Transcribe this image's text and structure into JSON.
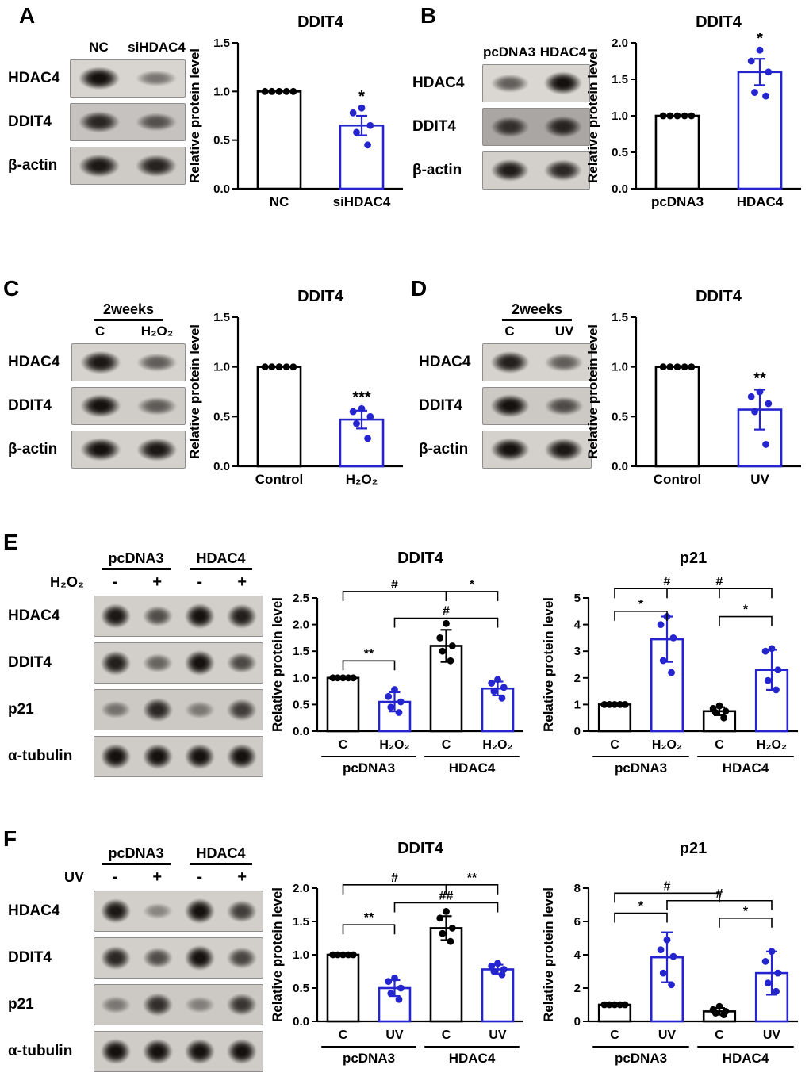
{
  "figure": {
    "colors": {
      "treatment_blue": "#2525d0",
      "control_black": "#000000"
    },
    "panels": [
      {
        "id": "A",
        "label": "A",
        "blot": {
          "lane_labels": [
            "NC",
            "siHDAC4"
          ],
          "rows": [
            {
              "label": "HDAC4",
              "bg": "#d8d4d0",
              "bands": [
                1.0,
                0.35
              ]
            },
            {
              "label": "DDIT4",
              "bg": "#c6c2bf",
              "bands": [
                0.85,
                0.55
              ]
            },
            {
              "label": "β-actin",
              "bg": "#cecac6",
              "bands": [
                0.95,
                0.88
              ]
            }
          ]
        }
      },
      {
        "id": "B",
        "label": "B",
        "blot": {
          "lane_labels": [
            "pcDNA3",
            "HDAC4"
          ],
          "rows": [
            {
              "label": "HDAC4",
              "bg": "#dad6d2",
              "bands": [
                0.5,
                1.0
              ]
            },
            {
              "label": "DDIT4",
              "bg": "#a9a6a3",
              "bands": [
                0.75,
                0.85
              ]
            },
            {
              "label": "β-actin",
              "bg": "#d3d0cc",
              "bands": [
                0.92,
                0.85
              ]
            }
          ]
        }
      },
      {
        "id": "C",
        "label": "C",
        "blot": {
          "duration_header": "2weeks",
          "lane_labels": [
            "C",
            "H₂O₂"
          ],
          "rows": [
            {
              "label": "HDAC4",
              "bg": "#d6d2ce",
              "bands": [
                0.95,
                0.5
              ]
            },
            {
              "label": "DDIT4",
              "bg": "#d0ccc8",
              "bands": [
                1.0,
                0.5
              ]
            },
            {
              "label": "β-actin",
              "bg": "#d4d0cc",
              "bands": [
                1.0,
                0.95
              ]
            }
          ]
        }
      },
      {
        "id": "D",
        "label": "D",
        "blot": {
          "duration_header": "2weeks",
          "lane_labels": [
            "C",
            "UV"
          ],
          "rows": [
            {
              "label": "HDAC4",
              "bg": "#d6d2ce",
              "bands": [
                0.9,
                0.5
              ]
            },
            {
              "label": "DDIT4",
              "bg": "#ccc8c4",
              "bands": [
                1.0,
                0.6
              ]
            },
            {
              "label": "β-actin",
              "bg": "#d4d0cc",
              "bands": [
                1.0,
                0.95
              ]
            }
          ]
        }
      },
      {
        "id": "E",
        "label": "E",
        "blot": {
          "group_headers": [
            "pcDNA3",
            "HDAC4"
          ],
          "treatment_label": "H₂O₂",
          "treatment_signs": [
            "-",
            "+",
            "-",
            "+"
          ],
          "rows": [
            {
              "label": "HDAC4",
              "bg": "#d2cec9",
              "bands": [
                0.95,
                0.6,
                1.0,
                0.9
              ]
            },
            {
              "label": "DDIT4",
              "bg": "#d2cec9",
              "bands": [
                0.9,
                0.45,
                1.0,
                0.62
              ]
            },
            {
              "label": "p21",
              "bg": "#ccc8c4",
              "bands": [
                0.35,
                0.85,
                0.3,
                0.7
              ]
            },
            {
              "label": "α-tubulin",
              "bg": "#cfcbc7",
              "bands": [
                1.0,
                1.0,
                1.0,
                1.0
              ]
            }
          ]
        }
      },
      {
        "id": "F",
        "label": "F",
        "blot": {
          "group_headers": [
            "pcDNA3",
            "HDAC4"
          ],
          "treatment_label": "UV",
          "treatment_signs": [
            "-",
            "+",
            "-",
            "+"
          ],
          "rows": [
            {
              "label": "HDAC4",
              "bg": "#d2cec9",
              "bands": [
                0.95,
                0.22,
                1.0,
                0.7
              ]
            },
            {
              "label": "DDIT4",
              "bg": "#d2cec9",
              "bands": [
                0.85,
                0.6,
                1.0,
                0.65
              ]
            },
            {
              "label": "p21",
              "bg": "#ccc8c4",
              "bands": [
                0.3,
                0.8,
                0.25,
                0.75
              ]
            },
            {
              "label": "α-tubulin",
              "bg": "#cfcbc7",
              "bands": [
                1.0,
                1.0,
                1.0,
                1.0
              ]
            }
          ]
        }
      }
    ]
  },
  "chart_data": [
    {
      "panel": "A",
      "type": "bar",
      "title": "DDIT4",
      "ylabel": "Relative protein level",
      "ylim": [
        0,
        1.5
      ],
      "yticks": [
        0,
        0.5,
        1.0,
        1.5
      ],
      "ytick_labels": [
        "0.0",
        "0.5",
        "1.0",
        "1.5"
      ],
      "categories": [
        "NC",
        "siHDAC4"
      ],
      "values": [
        1.0,
        0.65
      ],
      "errors": [
        0,
        0.1
      ],
      "bar_colors": [
        "#000000",
        "#2525d0"
      ],
      "points": [
        [
          1.0,
          1.0,
          1.0,
          1.0,
          1.0
        ],
        [
          0.83,
          0.78,
          0.65,
          0.58,
          0.45
        ]
      ],
      "sig_above": [
        {
          "bar": 1,
          "label": "*"
        }
      ],
      "brackets": []
    },
    {
      "panel": "B",
      "type": "bar",
      "title": "DDIT4",
      "ylabel": "Relative protein level",
      "ylim": [
        0,
        2.0
      ],
      "yticks": [
        0,
        0.5,
        1.0,
        1.5,
        2.0
      ],
      "ytick_labels": [
        "0.0",
        "0.5",
        "1.0",
        "1.5",
        "2.0"
      ],
      "categories": [
        "pcDNA3",
        "HDAC4"
      ],
      "values": [
        1.0,
        1.6
      ],
      "errors": [
        0,
        0.18
      ],
      "bar_colors": [
        "#000000",
        "#2525d0"
      ],
      "points": [
        [
          1.0,
          1.0,
          1.0,
          1.0,
          1.0
        ],
        [
          1.9,
          1.75,
          1.6,
          1.32,
          1.27
        ]
      ],
      "sig_above": [
        {
          "bar": 1,
          "label": "*"
        }
      ],
      "brackets": []
    },
    {
      "panel": "C",
      "type": "bar",
      "title": "DDIT4",
      "ylabel": "Relative protein level",
      "ylim": [
        0,
        1.5
      ],
      "yticks": [
        0,
        0.5,
        1.0,
        1.5
      ],
      "ytick_labels": [
        "0.0",
        "0.5",
        "1.0",
        "1.5"
      ],
      "categories": [
        "Control",
        "H₂O₂"
      ],
      "values": [
        1.0,
        0.47
      ],
      "errors": [
        0,
        0.09
      ],
      "bar_colors": [
        "#000000",
        "#2525d0"
      ],
      "points": [
        [
          1.0,
          1.0,
          1.0,
          1.0,
          1.0
        ],
        [
          0.58,
          0.55,
          0.5,
          0.43,
          0.28
        ]
      ],
      "sig_above": [
        {
          "bar": 1,
          "label": "***"
        }
      ],
      "brackets": []
    },
    {
      "panel": "D",
      "type": "bar",
      "title": "DDIT4",
      "ylabel": "Relative protein level",
      "ylim": [
        0,
        1.5
      ],
      "yticks": [
        0,
        0.5,
        1.0,
        1.5
      ],
      "ytick_labels": [
        "0.0",
        "0.5",
        "1.0",
        "1.5"
      ],
      "categories": [
        "Control",
        "UV"
      ],
      "values": [
        1.0,
        0.57
      ],
      "errors": [
        0,
        0.2
      ],
      "bar_colors": [
        "#000000",
        "#2525d0"
      ],
      "points": [
        [
          1.0,
          1.0,
          1.0,
          1.0,
          1.0
        ],
        [
          0.75,
          0.7,
          0.63,
          0.55,
          0.22
        ]
      ],
      "sig_above": [
        {
          "bar": 1,
          "label": "**"
        }
      ],
      "brackets": []
    },
    {
      "panel": "E",
      "type": "bar",
      "title": "DDIT4",
      "ylabel": "Relative protein level",
      "ylim": [
        0,
        2.5
      ],
      "yticks": [
        0,
        0.5,
        1.0,
        1.5,
        2.0,
        2.5
      ],
      "ytick_labels": [
        "0.0",
        "0.5",
        "1.0",
        "1.5",
        "2.0",
        "2.5"
      ],
      "categories": [
        "C",
        "H₂O₂",
        "C",
        "H₂O₂"
      ],
      "groups": [
        {
          "label": "pcDNA3",
          "from": 0,
          "to": 1
        },
        {
          "label": "HDAC4",
          "from": 2,
          "to": 3
        }
      ],
      "values": [
        1.0,
        0.55,
        1.6,
        0.8
      ],
      "errors": [
        0,
        0.18,
        0.3,
        0.13
      ],
      "bar_colors": [
        "#000000",
        "#2525d0",
        "#000000",
        "#2525d0"
      ],
      "points": [
        [
          1.0,
          1.0,
          1.0,
          1.0,
          1.0
        ],
        [
          0.78,
          0.65,
          0.55,
          0.45,
          0.35
        ],
        [
          2.02,
          1.75,
          1.6,
          1.5,
          1.32
        ],
        [
          0.97,
          0.9,
          0.82,
          0.75,
          0.62
        ]
      ],
      "sig_above": [],
      "brackets": [
        {
          "from": 0,
          "to": 1,
          "label": "**",
          "y": 1.32
        },
        {
          "from": 1,
          "to": 3,
          "label": "#",
          "y": 2.12
        },
        {
          "from": 0,
          "to": 2,
          "label": "#",
          "y": 2.62
        },
        {
          "from": 2,
          "to": 3,
          "label": "*",
          "y": 2.62
        }
      ]
    },
    {
      "panel": "E",
      "type": "bar",
      "title": "p21",
      "ylabel": "Relative protein level",
      "ylim": [
        0,
        5
      ],
      "yticks": [
        0,
        1,
        2,
        3,
        4,
        5
      ],
      "ytick_labels": [
        "0",
        "1",
        "2",
        "3",
        "4",
        "5"
      ],
      "categories": [
        "C",
        "H₂O₂",
        "C",
        "H₂O₂"
      ],
      "groups": [
        {
          "label": "pcDNA3",
          "from": 0,
          "to": 1
        },
        {
          "label": "HDAC4",
          "from": 2,
          "to": 3
        }
      ],
      "values": [
        1.0,
        3.45,
        0.75,
        2.3
      ],
      "errors": [
        0,
        0.85,
        0.15,
        0.75
      ],
      "bar_colors": [
        "#000000",
        "#2525d0",
        "#000000",
        "#2525d0"
      ],
      "points": [
        [
          1.0,
          1.0,
          1.0,
          1.0,
          1.0
        ],
        [
          4.3,
          4.0,
          3.5,
          2.65,
          2.2
        ],
        [
          0.95,
          0.85,
          0.75,
          0.7,
          0.5
        ],
        [
          3.1,
          3.0,
          2.3,
          1.9,
          1.55
        ]
      ],
      "sig_above": [],
      "brackets": [
        {
          "from": 0,
          "to": 1,
          "label": "*",
          "y": 4.5
        },
        {
          "from": 2,
          "to": 3,
          "label": "*",
          "y": 4.3
        },
        {
          "from": 0,
          "to": 2,
          "label": "#",
          "y": 5.35
        },
        {
          "from": 1,
          "to": 3,
          "label": "#",
          "y": 5.35
        }
      ]
    },
    {
      "panel": "F",
      "type": "bar",
      "title": "DDIT4",
      "ylabel": "Relative protein level",
      "ylim": [
        0,
        2.0
      ],
      "yticks": [
        0,
        0.5,
        1.0,
        1.5,
        2.0
      ],
      "ytick_labels": [
        "0.0",
        "0.5",
        "1.0",
        "1.5",
        "2.0"
      ],
      "categories": [
        "C",
        "UV",
        "C",
        "UV"
      ],
      "groups": [
        {
          "label": "pcDNA3",
          "from": 0,
          "to": 1
        },
        {
          "label": "HDAC4",
          "from": 2,
          "to": 3
        }
      ],
      "values": [
        1.0,
        0.5,
        1.4,
        0.78
      ],
      "errors": [
        0,
        0.12,
        0.18,
        0.07
      ],
      "bar_colors": [
        "#000000",
        "#2525d0",
        "#000000",
        "#2525d0"
      ],
      "points": [
        [
          1.0,
          1.0,
          1.0,
          1.0,
          1.0
        ],
        [
          0.65,
          0.6,
          0.5,
          0.42,
          0.33
        ],
        [
          1.65,
          1.55,
          1.4,
          1.32,
          1.2
        ],
        [
          0.87,
          0.83,
          0.78,
          0.75,
          0.7
        ]
      ],
      "sig_above": [],
      "brackets": [
        {
          "from": 0,
          "to": 1,
          "label": "**",
          "y": 1.45
        },
        {
          "from": 1,
          "to": 3,
          "label": "##",
          "y": 1.78
        },
        {
          "from": 0,
          "to": 2,
          "label": "#",
          "y": 2.05
        },
        {
          "from": 2,
          "to": 3,
          "label": "**",
          "y": 2.05
        }
      ]
    },
    {
      "panel": "F",
      "type": "bar",
      "title": "p21",
      "ylabel": "Relative protein level",
      "ylim": [
        0,
        8
      ],
      "yticks": [
        0,
        2,
        4,
        6,
        8
      ],
      "ytick_labels": [
        "0",
        "2",
        "4",
        "6",
        "8"
      ],
      "categories": [
        "C",
        "UV",
        "C",
        "UV"
      ],
      "groups": [
        {
          "label": "pcDNA3",
          "from": 0,
          "to": 1
        },
        {
          "label": "HDAC4",
          "from": 2,
          "to": 3
        }
      ],
      "values": [
        1.0,
        3.85,
        0.6,
        2.9
      ],
      "errors": [
        0,
        1.5,
        0.2,
        1.3
      ],
      "bar_colors": [
        "#000000",
        "#2525d0",
        "#000000",
        "#2525d0"
      ],
      "points": [
        [
          1.0,
          1.0,
          1.0,
          1.0,
          1.0
        ],
        [
          4.9,
          4.3,
          3.9,
          2.9,
          2.2
        ],
        [
          0.9,
          0.7,
          0.6,
          0.5,
          0.4
        ],
        [
          4.2,
          3.6,
          2.9,
          2.3,
          1.8
        ]
      ],
      "sig_above": [],
      "brackets": [
        {
          "from": 0,
          "to": 1,
          "label": "*",
          "y": 6.5
        },
        {
          "from": 2,
          "to": 3,
          "label": "*",
          "y": 6.2
        },
        {
          "from": 0,
          "to": 2,
          "label": "#",
          "y": 7.7
        },
        {
          "from": 1,
          "to": 3,
          "label": "#",
          "y": 7.25
        }
      ]
    }
  ]
}
